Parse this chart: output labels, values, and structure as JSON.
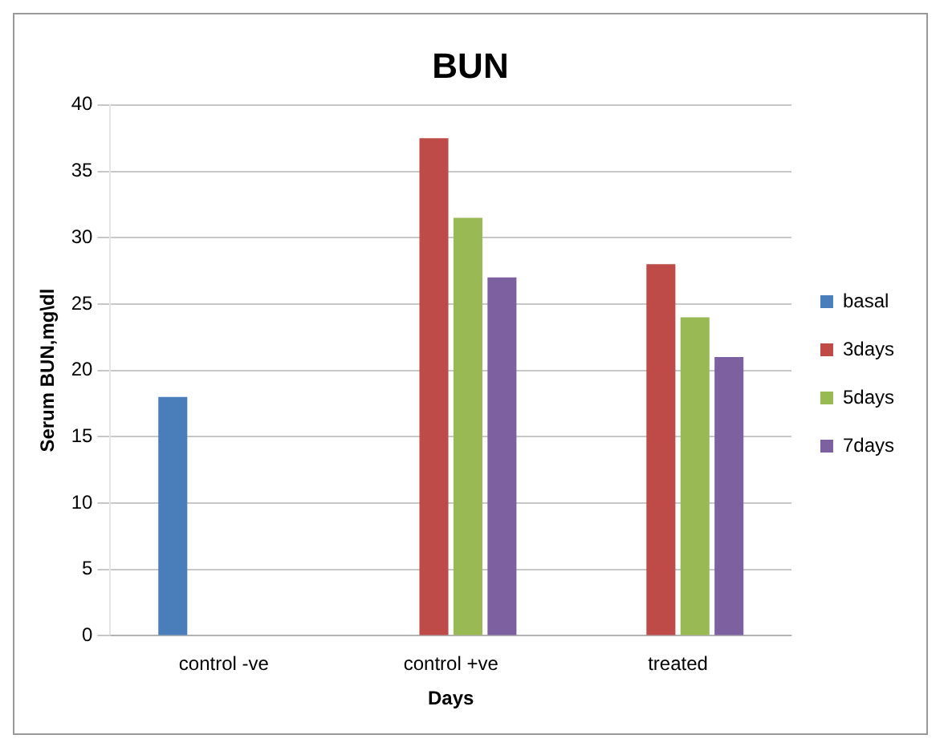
{
  "chart_data": {
    "type": "bar",
    "title": "BUN",
    "xlabel": "Days",
    "ylabel": "Serum BUN,mg\\dl",
    "categories": [
      "control -ve",
      "control +ve",
      "treated"
    ],
    "series": [
      {
        "name": "basal",
        "color": "#4a7ebb",
        "values": [
          18,
          null,
          null
        ]
      },
      {
        "name": "3days",
        "color": "#be4b48",
        "values": [
          null,
          37.5,
          28
        ]
      },
      {
        "name": "5days",
        "color": "#98b954",
        "values": [
          null,
          31.5,
          24
        ]
      },
      {
        "name": "7days",
        "color": "#7d60a0",
        "values": [
          null,
          27,
          21
        ]
      }
    ],
    "ylim": [
      0,
      40
    ],
    "yticks": [
      0,
      5,
      10,
      15,
      20,
      25,
      30,
      35,
      40
    ],
    "grid": "y",
    "legend": "right"
  }
}
